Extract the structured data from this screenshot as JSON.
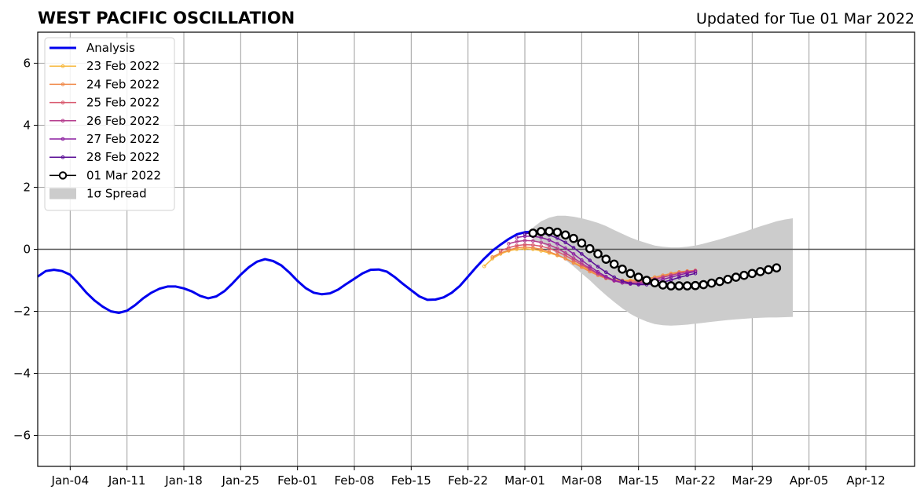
{
  "chart_data": {
    "type": "line",
    "title": "WEST PACIFIC OSCILLATION",
    "subtitle": "Updated for Tue 01 Mar 2022",
    "xlabel": "",
    "ylabel": "",
    "x_range": [
      "2021-12-31",
      "2022-04-18"
    ],
    "ylim": [
      -7,
      7
    ],
    "yticks": [
      -6,
      -4,
      -2,
      0,
      2,
      4,
      6
    ],
    "ytick_labels": [
      "−6",
      "−4",
      "−2",
      "0",
      "2",
      "4",
      "6"
    ],
    "xticks": [
      {
        "date": "2022-01-04",
        "label": "Jan-04"
      },
      {
        "date": "2022-01-11",
        "label": "Jan-11"
      },
      {
        "date": "2022-01-18",
        "label": "Jan-18"
      },
      {
        "date": "2022-01-25",
        "label": "Jan-25"
      },
      {
        "date": "2022-02-01",
        "label": "Feb-01"
      },
      {
        "date": "2022-02-08",
        "label": "Feb-08"
      },
      {
        "date": "2022-02-15",
        "label": "Feb-15"
      },
      {
        "date": "2022-02-22",
        "label": "Feb-22"
      },
      {
        "date": "2022-03-01",
        "label": "Mar-01"
      },
      {
        "date": "2022-03-08",
        "label": "Mar-08"
      },
      {
        "date": "2022-03-15",
        "label": "Mar-15"
      },
      {
        "date": "2022-03-22",
        "label": "Mar-22"
      },
      {
        "date": "2022-03-29",
        "label": "Mar-29"
      },
      {
        "date": "2022-04-05",
        "label": "Apr-05"
      },
      {
        "date": "2022-04-12",
        "label": "Apr-12"
      }
    ],
    "grid": true,
    "legend_position": "top-left",
    "series": [
      {
        "name": "Analysis",
        "color": "#0000ee",
        "style": "thick",
        "start": "2021-12-31",
        "values": [
          -0.88,
          -0.7,
          -0.66,
          -0.7,
          -0.82,
          -1.1,
          -1.4,
          -1.65,
          -1.85,
          -2.0,
          -2.05,
          -1.98,
          -1.8,
          -1.58,
          -1.4,
          -1.27,
          -1.2,
          -1.2,
          -1.26,
          -1.36,
          -1.5,
          -1.58,
          -1.52,
          -1.35,
          -1.1,
          -0.82,
          -0.58,
          -0.4,
          -0.32,
          -0.38,
          -0.52,
          -0.75,
          -1.02,
          -1.25,
          -1.4,
          -1.45,
          -1.42,
          -1.3,
          -1.12,
          -0.95,
          -0.78,
          -0.66,
          -0.65,
          -0.72,
          -0.9,
          -1.12,
          -1.32,
          -1.52,
          -1.63,
          -1.62,
          -1.55,
          -1.4,
          -1.18,
          -0.88,
          -0.58,
          -0.3,
          -0.05,
          0.15,
          0.33,
          0.48,
          0.55,
          0.57
        ]
      },
      {
        "name": "23 Feb 2022",
        "color": "#f7b83c",
        "style": "thin",
        "start": "2022-02-24",
        "values": [
          -0.55,
          -0.3,
          -0.15,
          -0.05,
          0.0,
          0.02,
          0.0,
          -0.05,
          -0.12,
          -0.2,
          -0.3,
          -0.42,
          -0.55,
          -0.68,
          -0.8,
          -0.9,
          -0.98,
          -1.0,
          -1.0,
          -0.98,
          -0.95,
          -0.9,
          -0.85,
          -0.8,
          -0.75,
          -0.72,
          -0.7
        ]
      },
      {
        "name": "24 Feb 2022",
        "color": "#f08a4b",
        "style": "thin",
        "start": "2022-02-25",
        "values": [
          -0.25,
          -0.12,
          -0.03,
          0.05,
          0.07,
          0.05,
          0.0,
          -0.08,
          -0.18,
          -0.3,
          -0.44,
          -0.58,
          -0.72,
          -0.84,
          -0.94,
          -1.0,
          -1.02,
          -1.02,
          -0.98,
          -0.95,
          -0.9,
          -0.84,
          -0.78,
          -0.73,
          -0.7,
          -0.68
        ]
      },
      {
        "name": "25 Feb 2022",
        "color": "#d95a6f",
        "style": "thin",
        "start": "2022-02-26",
        "values": [
          -0.05,
          0.05,
          0.12,
          0.15,
          0.14,
          0.1,
          0.03,
          -0.07,
          -0.2,
          -0.35,
          -0.5,
          -0.65,
          -0.8,
          -0.92,
          -1.0,
          -1.05,
          -1.06,
          -1.04,
          -1.0,
          -0.95,
          -0.89,
          -0.83,
          -0.77,
          -0.72,
          -0.69
        ]
      },
      {
        "name": "26 Feb 2022",
        "color": "#b53c8d",
        "style": "thin",
        "start": "2022-02-27",
        "values": [
          0.18,
          0.25,
          0.28,
          0.27,
          0.22,
          0.14,
          0.03,
          -0.12,
          -0.28,
          -0.45,
          -0.62,
          -0.78,
          -0.92,
          -1.02,
          -1.08,
          -1.1,
          -1.08,
          -1.03,
          -0.97,
          -0.9,
          -0.84,
          -0.78,
          -0.73,
          -0.7
        ]
      },
      {
        "name": "27 Feb 2022",
        "color": "#8c1fa0",
        "style": "thin",
        "start": "2022-02-28",
        "values": [
          0.38,
          0.42,
          0.42,
          0.38,
          0.3,
          0.18,
          0.03,
          -0.15,
          -0.35,
          -0.55,
          -0.73,
          -0.88,
          -1.0,
          -1.08,
          -1.12,
          -1.12,
          -1.09,
          -1.04,
          -0.97,
          -0.9,
          -0.83,
          -0.77,
          -0.72
        ]
      },
      {
        "name": "28 Feb 2022",
        "color": "#5a0f96",
        "style": "thin",
        "start": "2022-03-01",
        "values": [
          0.5,
          0.54,
          0.52,
          0.46,
          0.36,
          0.22,
          0.05,
          -0.15,
          -0.36,
          -0.56,
          -0.74,
          -0.9,
          -1.02,
          -1.1,
          -1.14,
          -1.14,
          -1.11,
          -1.06,
          -0.99,
          -0.91,
          -0.84,
          -0.78
        ]
      },
      {
        "name": "01 Mar 2022",
        "color": "#000000",
        "style": "markers",
        "start": "2022-03-02",
        "values": [
          0.52,
          0.57,
          0.58,
          0.55,
          0.46,
          0.35,
          0.2,
          0.02,
          -0.15,
          -0.32,
          -0.48,
          -0.64,
          -0.78,
          -0.9,
          -1.0,
          -1.08,
          -1.15,
          -1.18,
          -1.18,
          -1.18,
          -1.17,
          -1.14,
          -1.09,
          -1.04,
          -0.97,
          -0.9,
          -0.84,
          -0.78,
          -0.72,
          -0.66,
          -0.6
        ]
      }
    ],
    "spread": {
      "name": "1σ Spread",
      "color": "#cccccc",
      "start": "2022-03-02",
      "upper": [
        0.7,
        0.9,
        1.02,
        1.08,
        1.08,
        1.05,
        1.0,
        0.93,
        0.85,
        0.75,
        0.62,
        0.5,
        0.38,
        0.28,
        0.2,
        0.12,
        0.08,
        0.06,
        0.06,
        0.08,
        0.12,
        0.18,
        0.25,
        0.32,
        0.4,
        0.48,
        0.56,
        0.65,
        0.74,
        0.82,
        0.9,
        0.96,
        1.0
      ],
      "lower": [
        0.3,
        0.2,
        0.05,
        -0.15,
        -0.35,
        -0.55,
        -0.78,
        -1.0,
        -1.25,
        -1.48,
        -1.7,
        -1.9,
        -2.08,
        -2.22,
        -2.33,
        -2.41,
        -2.45,
        -2.46,
        -2.45,
        -2.43,
        -2.4,
        -2.37,
        -2.34,
        -2.31,
        -2.28,
        -2.26,
        -2.24,
        -2.22,
        -2.21,
        -2.2,
        -2.2,
        -2.19,
        -2.18
      ]
    }
  }
}
